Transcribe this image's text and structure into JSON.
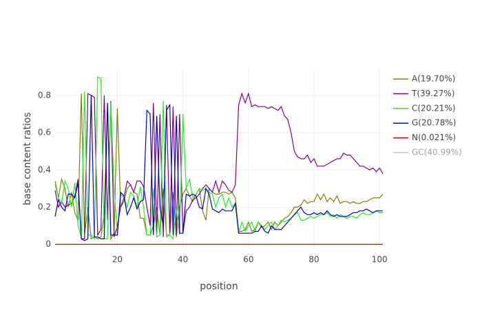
{
  "chart_data": {
    "type": "line",
    "xlabel": "position",
    "ylabel": "base content ratios",
    "x": [
      1,
      2,
      3,
      4,
      5,
      6,
      7,
      8,
      9,
      10,
      11,
      12,
      13,
      14,
      15,
      16,
      17,
      18,
      19,
      20,
      21,
      22,
      23,
      24,
      25,
      26,
      27,
      28,
      29,
      30,
      31,
      32,
      33,
      34,
      35,
      36,
      37,
      38,
      39,
      40,
      41,
      42,
      43,
      44,
      45,
      46,
      47,
      48,
      49,
      50,
      51,
      52,
      53,
      54,
      55,
      56,
      57,
      58,
      59,
      60,
      61,
      62,
      63,
      64,
      65,
      66,
      67,
      68,
      69,
      70,
      71,
      72,
      73,
      74,
      75,
      76,
      77,
      78,
      79,
      80,
      81,
      82,
      83,
      84,
      85,
      86,
      87,
      88,
      89,
      90,
      91,
      92,
      93,
      94,
      95,
      96,
      97,
      98,
      99,
      100,
      101
    ],
    "series": [
      {
        "name": "A(19.70%)",
        "color": "#808000",
        "values": [
          0.34,
          0.25,
          0.35,
          0.3,
          0.2,
          0.28,
          0.17,
          0.13,
          0.81,
          0.05,
          0.2,
          0.03,
          0.04,
          0.03,
          0.04,
          0.17,
          0.76,
          0.03,
          0.06,
          0.73,
          0.2,
          0.23,
          0.3,
          0.32,
          0.28,
          0.27,
          0.14,
          0.14,
          0.05,
          0.05,
          0.1,
          0.2,
          0.05,
          0.3,
          0.05,
          0.05,
          0.28,
          0.04,
          0.2,
          0.27,
          0.3,
          0.26,
          0.23,
          0.27,
          0.3,
          0.18,
          0.13,
          0.3,
          0.28,
          0.27,
          0.27,
          0.28,
          0.28,
          0.27,
          0.28,
          0.25,
          0.07,
          0.07,
          0.08,
          0.12,
          0.07,
          0.08,
          0.12,
          0.09,
          0.1,
          0.12,
          0.08,
          0.12,
          0.1,
          0.12,
          0.14,
          0.15,
          0.17,
          0.2,
          0.2,
          0.21,
          0.24,
          0.22,
          0.23,
          0.23,
          0.27,
          0.24,
          0.27,
          0.23,
          0.25,
          0.23,
          0.26,
          0.22,
          0.23,
          0.23,
          0.22,
          0.23,
          0.22,
          0.22,
          0.23,
          0.23,
          0.24,
          0.25,
          0.25,
          0.25,
          0.27
        ]
      },
      {
        "name": "T(39.27%)",
        "color": "#800080",
        "values": [
          0.29,
          0.2,
          0.23,
          0.2,
          0.21,
          0.22,
          0.26,
          0.35,
          0.03,
          0.03,
          0.81,
          0.8,
          0.79,
          0.05,
          0.08,
          0.8,
          0.13,
          0.77,
          0.04,
          0.1,
          0.2,
          0.25,
          0.34,
          0.32,
          0.28,
          0.34,
          0.34,
          0.31,
          0.2,
          0.1,
          0.76,
          0.05,
          0.7,
          0.04,
          0.75,
          0.06,
          0.74,
          0.05,
          0.7,
          0.06,
          0.18,
          0.2,
          0.24,
          0.25,
          0.27,
          0.3,
          0.32,
          0.3,
          0.28,
          0.34,
          0.28,
          0.34,
          0.32,
          0.29,
          0.28,
          0.32,
          0.75,
          0.81,
          0.76,
          0.81,
          0.74,
          0.75,
          0.74,
          0.74,
          0.74,
          0.73,
          0.74,
          0.73,
          0.72,
          0.74,
          0.69,
          0.67,
          0.6,
          0.5,
          0.47,
          0.46,
          0.46,
          0.48,
          0.44,
          0.46,
          0.42,
          0.42,
          0.42,
          0.43,
          0.44,
          0.45,
          0.46,
          0.46,
          0.49,
          0.48,
          0.48,
          0.46,
          0.44,
          0.42,
          0.42,
          0.41,
          0.4,
          0.41,
          0.39,
          0.41,
          0.38
        ]
      },
      {
        "name": "C(20.21%)",
        "color": "#22ee22",
        "values": [
          0.32,
          0.25,
          0.22,
          0.34,
          0.3,
          0.2,
          0.33,
          0.1,
          0.04,
          0.82,
          0.05,
          0.05,
          0.03,
          0.9,
          0.89,
          0.03,
          0.03,
          0.76,
          0.3,
          0.05,
          0.27,
          0.25,
          0.2,
          0.28,
          0.26,
          0.2,
          0.31,
          0.2,
          0.05,
          0.05,
          0.3,
          0.04,
          0.05,
          0.77,
          0.04,
          0.05,
          0.03,
          0.2,
          0.05,
          0.7,
          0.3,
          0.35,
          0.25,
          0.27,
          0.3,
          0.29,
          0.3,
          0.28,
          0.27,
          0.2,
          0.25,
          0.27,
          0.2,
          0.25,
          0.2,
          0.22,
          0.06,
          0.12,
          0.07,
          0.1,
          0.12,
          0.07,
          0.12,
          0.1,
          0.08,
          0.1,
          0.12,
          0.08,
          0.1,
          0.13,
          0.12,
          0.13,
          0.14,
          0.16,
          0.17,
          0.13,
          0.13,
          0.14,
          0.15,
          0.14,
          0.15,
          0.16,
          0.16,
          0.17,
          0.15,
          0.16,
          0.14,
          0.16,
          0.15,
          0.14,
          0.15,
          0.15,
          0.14,
          0.16,
          0.17,
          0.16,
          0.16,
          0.17,
          0.18,
          0.17,
          0.17
        ]
      },
      {
        "name": "G(20.78%)",
        "color": "#0000cc",
        "values": [
          0.15,
          0.24,
          0.2,
          0.18,
          0.27,
          0.27,
          0.25,
          0.33,
          0.03,
          0.02,
          0.03,
          0.8,
          0.04,
          0.04,
          0.03,
          0.03,
          0.76,
          0.05,
          0.05,
          0.05,
          0.28,
          0.26,
          0.16,
          0.2,
          0.25,
          0.19,
          0.23,
          0.24,
          0.72,
          0.7,
          0.05,
          0.69,
          0.2,
          0.1,
          0.72,
          0.75,
          0.05,
          0.69,
          0.06,
          0.06,
          0.27,
          0.26,
          0.27,
          0.26,
          0.2,
          0.19,
          0.3,
          0.27,
          0.19,
          0.18,
          0.17,
          0.19,
          0.18,
          0.18,
          0.18,
          0.22,
          0.06,
          0.06,
          0.06,
          0.06,
          0.06,
          0.07,
          0.07,
          0.1,
          0.07,
          0.06,
          0.1,
          0.08,
          0.08,
          0.08,
          0.1,
          0.12,
          0.14,
          0.16,
          0.18,
          0.2,
          0.17,
          0.16,
          0.16,
          0.17,
          0.16,
          0.17,
          0.16,
          0.18,
          0.16,
          0.15,
          0.16,
          0.15,
          0.15,
          0.15,
          0.16,
          0.17,
          0.17,
          0.18,
          0.18,
          0.19,
          0.18,
          0.17,
          0.18,
          0.18,
          0.18
        ]
      },
      {
        "name": "N(0.021%)",
        "color": "#cc0000",
        "values": [
          0.0002,
          0.0002,
          0.0002,
          0.0002,
          0.0002,
          0.0002,
          0.0002,
          0.0002,
          0.0002,
          0.0002,
          0.0002,
          0.0002,
          0.0002,
          0.0002,
          0.0002,
          0.0002,
          0.0002,
          0.0002,
          0.0002,
          0.0002,
          0.0002,
          0.0002,
          0.0002,
          0.0002,
          0.0002,
          0.0002,
          0.0002,
          0.0002,
          0.0002,
          0.0002,
          0.0002,
          0.0002,
          0.0002,
          0.0002,
          0.0002,
          0.0002,
          0.0002,
          0.0002,
          0.0002,
          0.0002,
          0.0002,
          0.0002,
          0.0002,
          0.0002,
          0.0002,
          0.0002,
          0.0002,
          0.0002,
          0.0002,
          0.0002,
          0.0002,
          0.0002,
          0.0002,
          0.0002,
          0.0002,
          0.0002,
          0.0002,
          0.0002,
          0.0002,
          0.0002,
          0.0002,
          0.0002,
          0.0002,
          0.0002,
          0.0002,
          0.0002,
          0.0002,
          0.0002,
          0.0002,
          0.0002,
          0.0002,
          0.0002,
          0.0002,
          0.0002,
          0.0002,
          0.0002,
          0.0002,
          0.0002,
          0.0002,
          0.0002,
          0.0002,
          0.0002,
          0.0002,
          0.0002,
          0.0002,
          0.0002,
          0.0002,
          0.0002,
          0.0002,
          0.0002,
          0.0002,
          0.0002,
          0.0002,
          0.0002,
          0.0002,
          0.0002,
          0.0002,
          0.0002,
          0.0002,
          0.0002,
          0.0002
        ]
      },
      {
        "name": "GC(40.99%)",
        "color": "#888888",
        "visible": "legendonly"
      }
    ],
    "xlim": [
      1,
      101
    ],
    "ylim": [
      -0.02,
      0.94
    ],
    "xticks": [
      20,
      40,
      60,
      80,
      100
    ],
    "yticks": [
      0,
      0.2,
      0.4,
      0.6,
      0.8
    ],
    "grid": true,
    "legend": "right"
  }
}
